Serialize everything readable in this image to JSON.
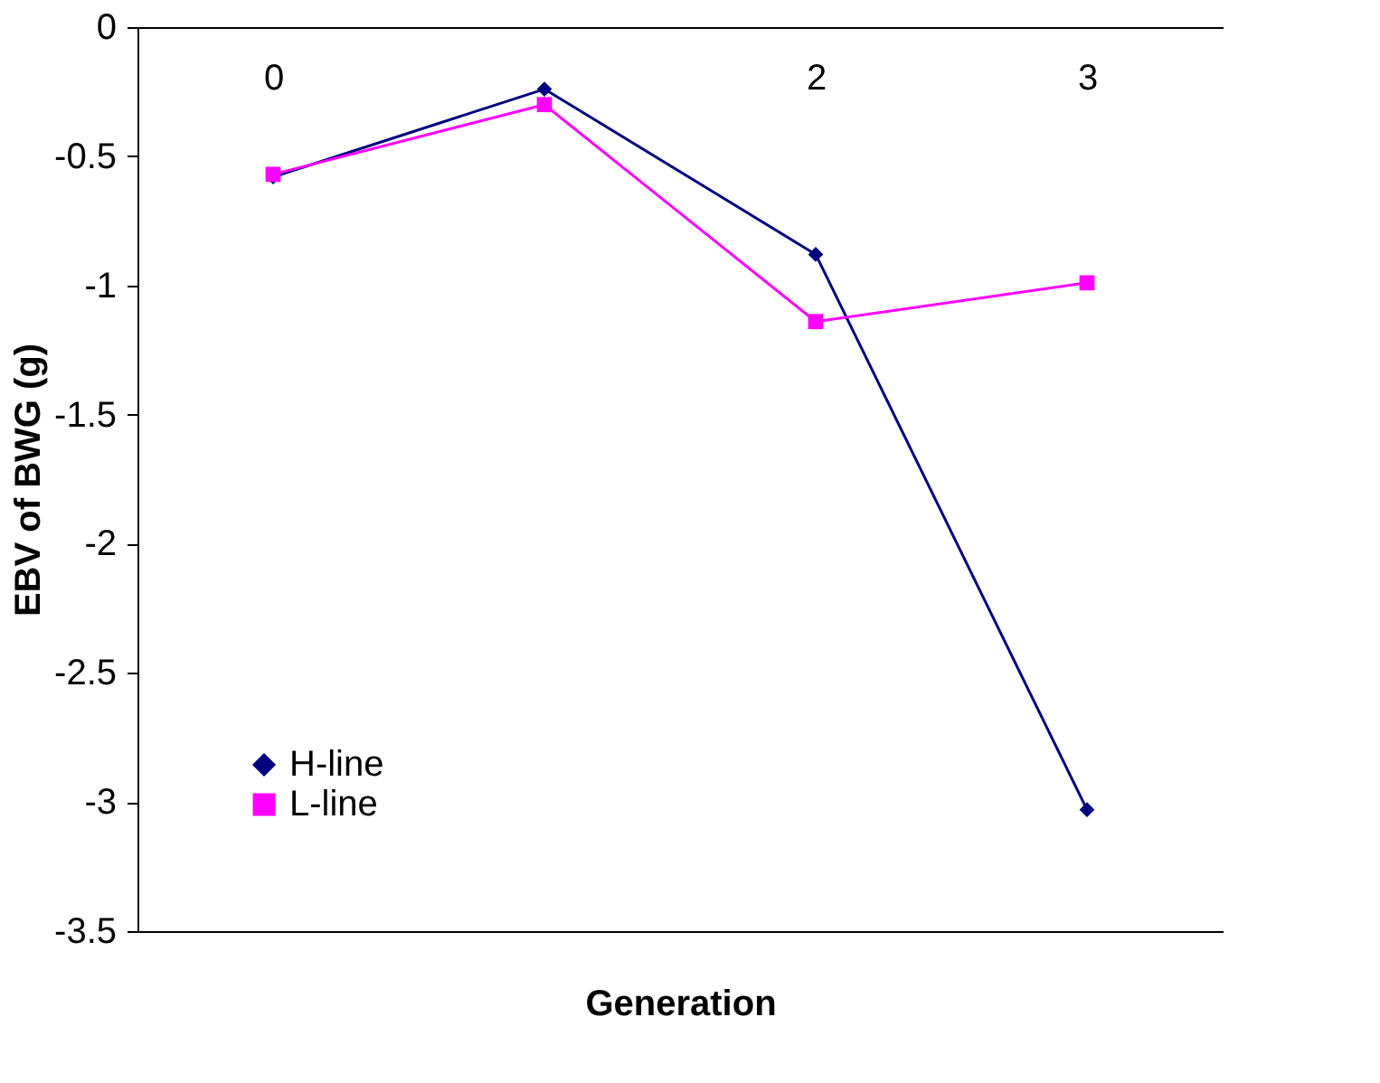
{
  "chart_data": {
    "type": "line",
    "xlabel": "Generation",
    "ylabel": "EBV of BWG (g)",
    "categories": [
      "0",
      null,
      "2",
      "3"
    ],
    "ylim": [
      -3.5,
      0
    ],
    "yticks": [
      0,
      -0.5,
      -1,
      -1.5,
      -2,
      -2.5,
      -3,
      -3.5
    ],
    "grid": false,
    "legend": "bottom left",
    "line_style": "solid",
    "series": [
      {
        "name": "H-line",
        "color": "#000080",
        "marker": "diamond",
        "values": [
          -0.58,
          -0.24,
          -0.88,
          -3.03
        ]
      },
      {
        "name": "L-line",
        "color": "#ff00ff",
        "marker": "square",
        "values": [
          -0.57,
          -0.3,
          -1.14,
          -0.99
        ]
      }
    ]
  }
}
